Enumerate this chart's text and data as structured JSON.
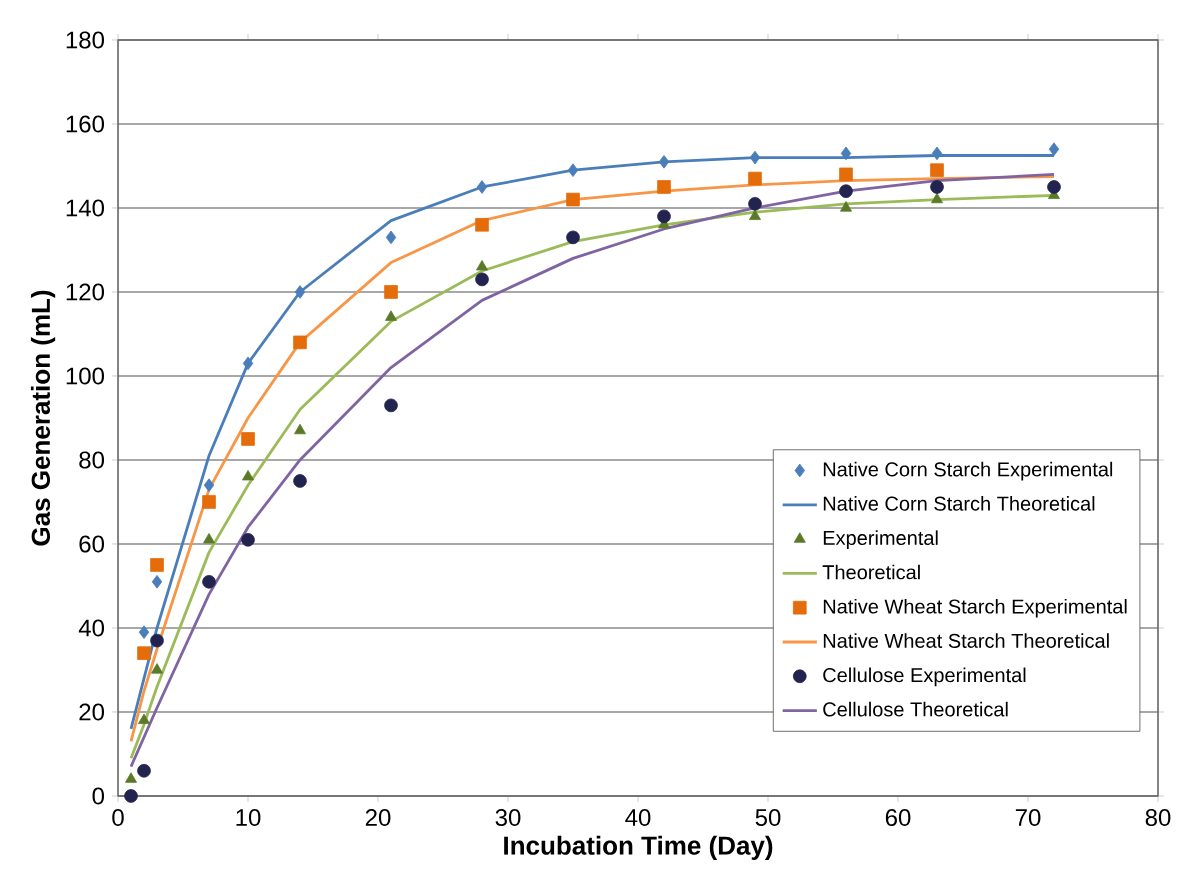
{
  "chart_data": {
    "type": "line",
    "xlabel": "Incubation Time (Day)",
    "ylabel": "Gas Generation (mL)",
    "x": [
      1,
      2,
      3,
      7,
      10,
      14,
      21,
      28,
      35,
      42,
      49,
      56,
      63,
      72
    ],
    "xlim": [
      0,
      80
    ],
    "xticks": [
      0,
      10,
      20,
      30,
      40,
      50,
      60,
      70,
      80
    ],
    "ylim": [
      0,
      180
    ],
    "yticks": [
      0,
      20,
      40,
      60,
      80,
      100,
      120,
      140,
      160,
      180
    ],
    "grid": "y",
    "legend": "bottom right",
    "series": [
      {
        "name": "Native Corn Starch Experimental",
        "type": "scatter",
        "marker": "diamond",
        "color": "#4a7ebb",
        "values": [
          null,
          39,
          51,
          74,
          103,
          120,
          133,
          145,
          149,
          151,
          152,
          153,
          153,
          154
        ]
      },
      {
        "name": "Native Corn Starch Theoretical",
        "marker": "none",
        "color": "#4a7ebb",
        "values": [
          16,
          28,
          40,
          81,
          103,
          120,
          137,
          145,
          149,
          151,
          152,
          152,
          152.5,
          152.5
        ]
      },
      {
        "name": "Experimental",
        "type": "scatter",
        "marker": "triangle",
        "color": "#5a7a28",
        "values": [
          4,
          18,
          30,
          61,
          76,
          87,
          114,
          126,
          null,
          136,
          138,
          140,
          142,
          143
        ]
      },
      {
        "name": "Theoretical",
        "marker": "none",
        "color": "#9bbb59",
        "values": [
          9,
          17,
          26,
          58,
          74,
          92,
          113,
          125,
          132,
          136,
          139,
          141,
          142,
          143
        ]
      },
      {
        "name": "Native Wheat Starch Experimental",
        "type": "scatter",
        "marker": "square",
        "color": "#e46c0a",
        "values": [
          null,
          34,
          55,
          70,
          85,
          108,
          120,
          136,
          142,
          145,
          147,
          148,
          149,
          null
        ]
      },
      {
        "name": "Native Wheat Starch Theoretical",
        "marker": "none",
        "color": "#f79646",
        "values": [
          13,
          25,
          35,
          73,
          90,
          108,
          127,
          137,
          142,
          144,
          145.5,
          146.5,
          147,
          147.5
        ]
      },
      {
        "name": "Cellulose Experimental",
        "type": "scatter",
        "marker": "circle",
        "color": "#23234f",
        "values": [
          0,
          6,
          37,
          51,
          61,
          75,
          93,
          123,
          133,
          138,
          141,
          144,
          145,
          145
        ]
      },
      {
        "name": "Cellulose Theoretical",
        "marker": "none",
        "color": "#8064a2",
        "values": [
          7,
          14,
          21,
          48,
          64,
          80,
          102,
          118,
          128,
          135,
          140,
          144,
          146.5,
          148
        ]
      }
    ]
  }
}
